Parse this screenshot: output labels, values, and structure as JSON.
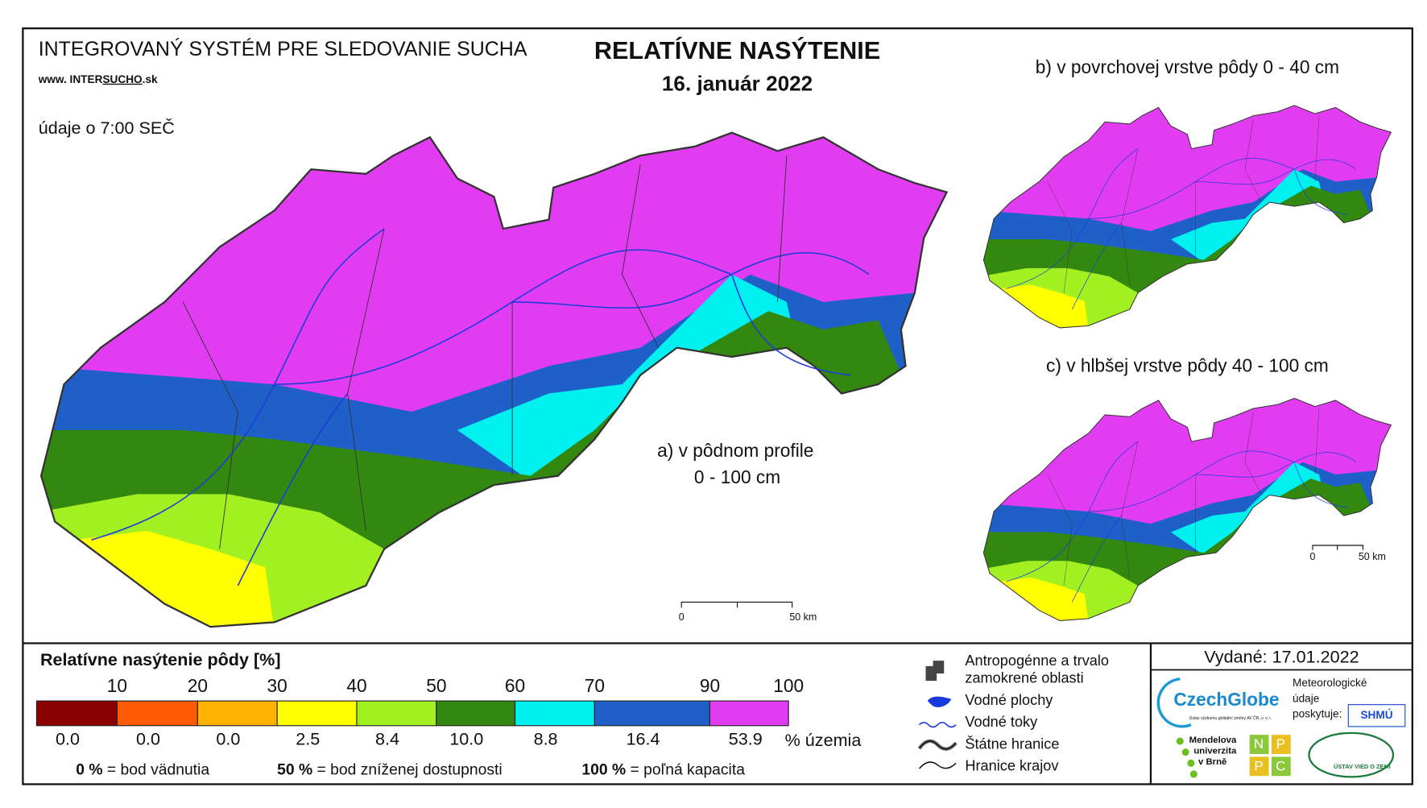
{
  "header": {
    "system": "INTEGROVANÝ SYSTÉM PRE SLEDOVANIE SUCHA",
    "url_prefix": "www. INTER",
    "url_bold": "SUCHO",
    "url_suffix": ".sk",
    "time": "údaje o 7:00 SEČ",
    "title": "RELATÍVNE NASÝTENIE",
    "date": "16. január 2022"
  },
  "maps": [
    {
      "label": "a) v pôdnom profile",
      "depth": "0 - 100 cm"
    },
    {
      "label": "b) v povrchovej vrstve pôdy 0 - 40 cm"
    },
    {
      "label": "c) v hlbšej vrstve pôdy 40 - 100 cm"
    }
  ],
  "scale_bar": {
    "start": "0",
    "end": "50 km"
  },
  "legend": {
    "title": "Relatívne nasýtenie pôdy [%]",
    "ticks": [
      10,
      20,
      30,
      40,
      50,
      60,
      70,
      90,
      100
    ],
    "classes": [
      {
        "color": "#8b0000",
        "share": "0.0"
      },
      {
        "color": "#ff5a00",
        "share": "0.0"
      },
      {
        "color": "#ffb300",
        "share": "0.0"
      },
      {
        "color": "#ffff00",
        "share": "2.5"
      },
      {
        "color": "#a3f022",
        "share": "8.4"
      },
      {
        "color": "#33880f",
        "share": "10.0"
      },
      {
        "color": "#00f0f0",
        "share": "8.8"
      },
      {
        "color": "#1f5fc8",
        "share": "16.4"
      },
      {
        "color": "#e23cf2",
        "share": "53.9"
      }
    ],
    "share_unit": "% územia",
    "notes": [
      {
        "value": "0 %",
        "text": "= bod vädnutia"
      },
      {
        "value": "50 %",
        "text": "= bod zníženej dostupnosti"
      },
      {
        "value": "100 %",
        "text": "= poľná kapacita"
      }
    ]
  },
  "symbols": [
    "Antropogénne a trvalo",
    "zamokrené oblasti",
    "Vodné plochy",
    "Vodné toky",
    "Štátne hranice",
    "Hranice krajov"
  ],
  "issued": "Vydané: 17.01.2022",
  "providers": {
    "czechglobe": "CzechGlobe",
    "czechglobe_sub": "Ústav výzkumu globální změny AV ČR, v. v. i.",
    "meteo": [
      "Meteorologické",
      "údaje",
      "poskytuje:"
    ],
    "shmu": "SHMÚ",
    "mendel": [
      "Mendelova",
      "univerzita",
      "v Brně"
    ],
    "nppc": [
      "N",
      "P",
      "P",
      "C"
    ],
    "uvz": "ÚSTAV VIED O ZEMI"
  }
}
